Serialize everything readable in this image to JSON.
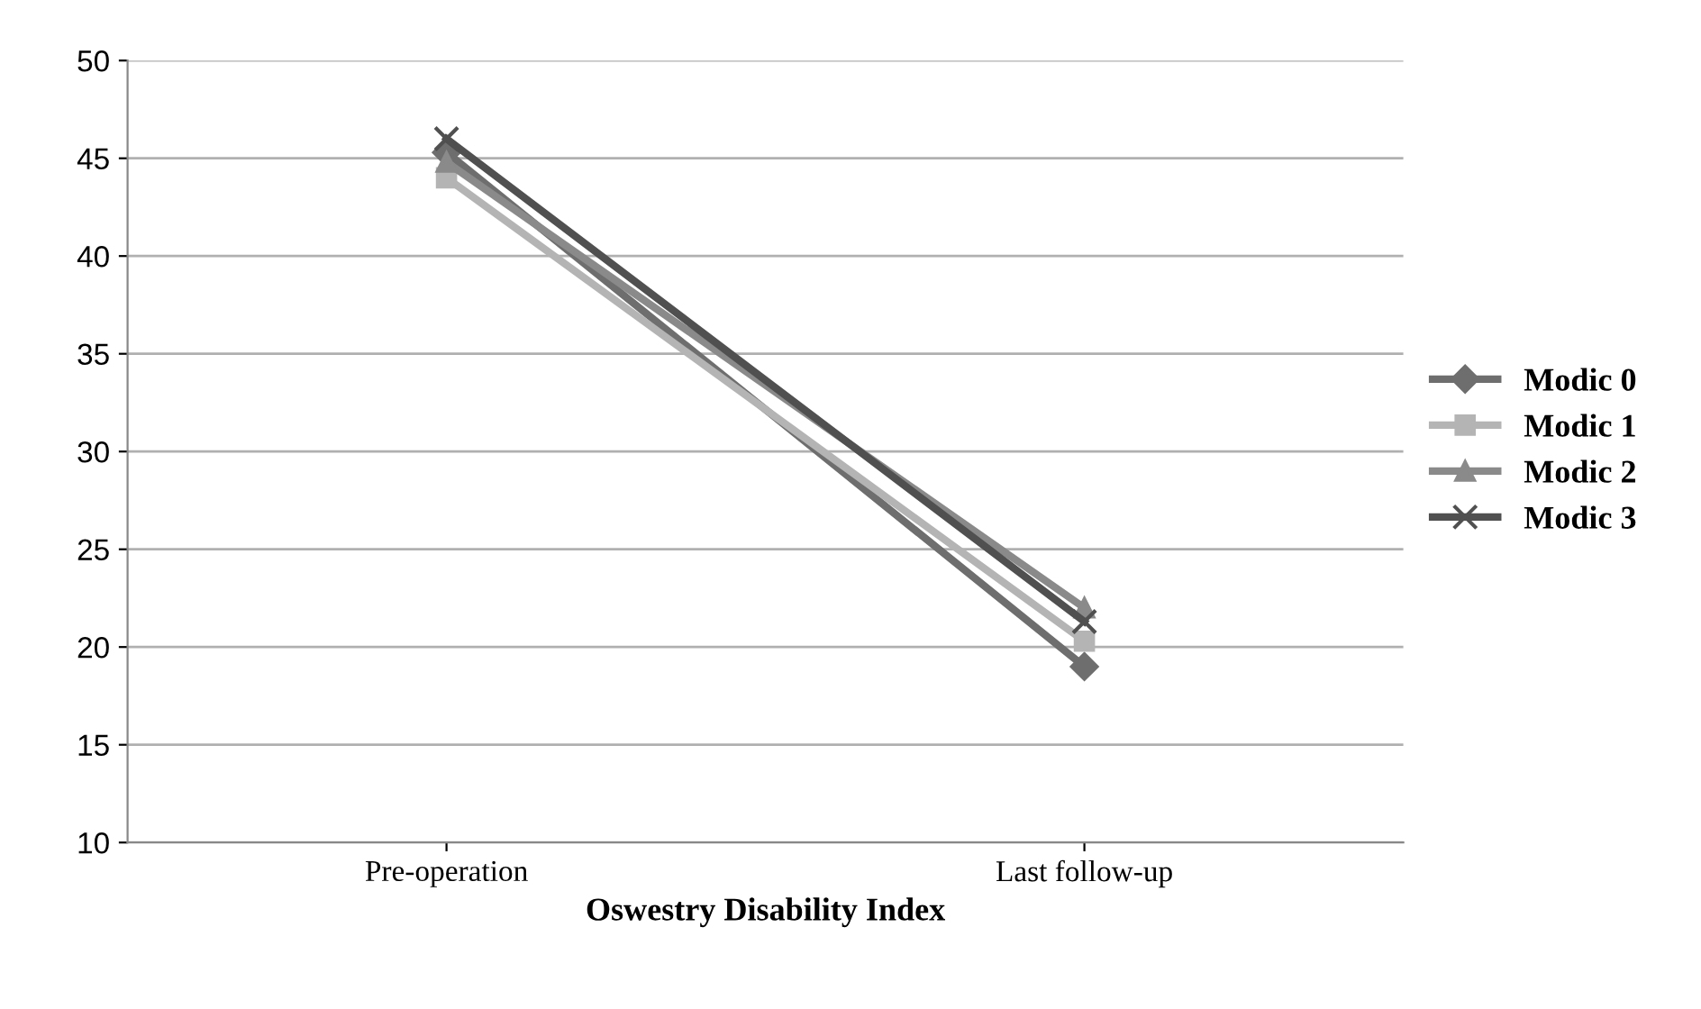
{
  "chart_data": {
    "type": "line",
    "xlabel": "Oswestry Disability Index",
    "categories": [
      "Pre-operation",
      "Last follow-up"
    ],
    "series": [
      {
        "name": "Modic 0",
        "color": "#6e6e6e",
        "marker": "diamond",
        "values": [
          45.3,
          19.0
        ]
      },
      {
        "name": "Modic 1",
        "color": "#b4b4b4",
        "marker": "square",
        "values": [
          44.0,
          20.3
        ]
      },
      {
        "name": "Modic 2",
        "color": "#8a8a8a",
        "marker": "triangle",
        "values": [
          44.8,
          22.0
        ]
      },
      {
        "name": "Modic 3",
        "color": "#505050",
        "marker": "cross",
        "values": [
          46.0,
          21.3
        ]
      }
    ],
    "ylim": [
      10,
      50
    ],
    "yticks": [
      10,
      15,
      20,
      25,
      30,
      35,
      40,
      45,
      50
    ],
    "grid": "y",
    "legend": "right",
    "line_style": "solid"
  }
}
